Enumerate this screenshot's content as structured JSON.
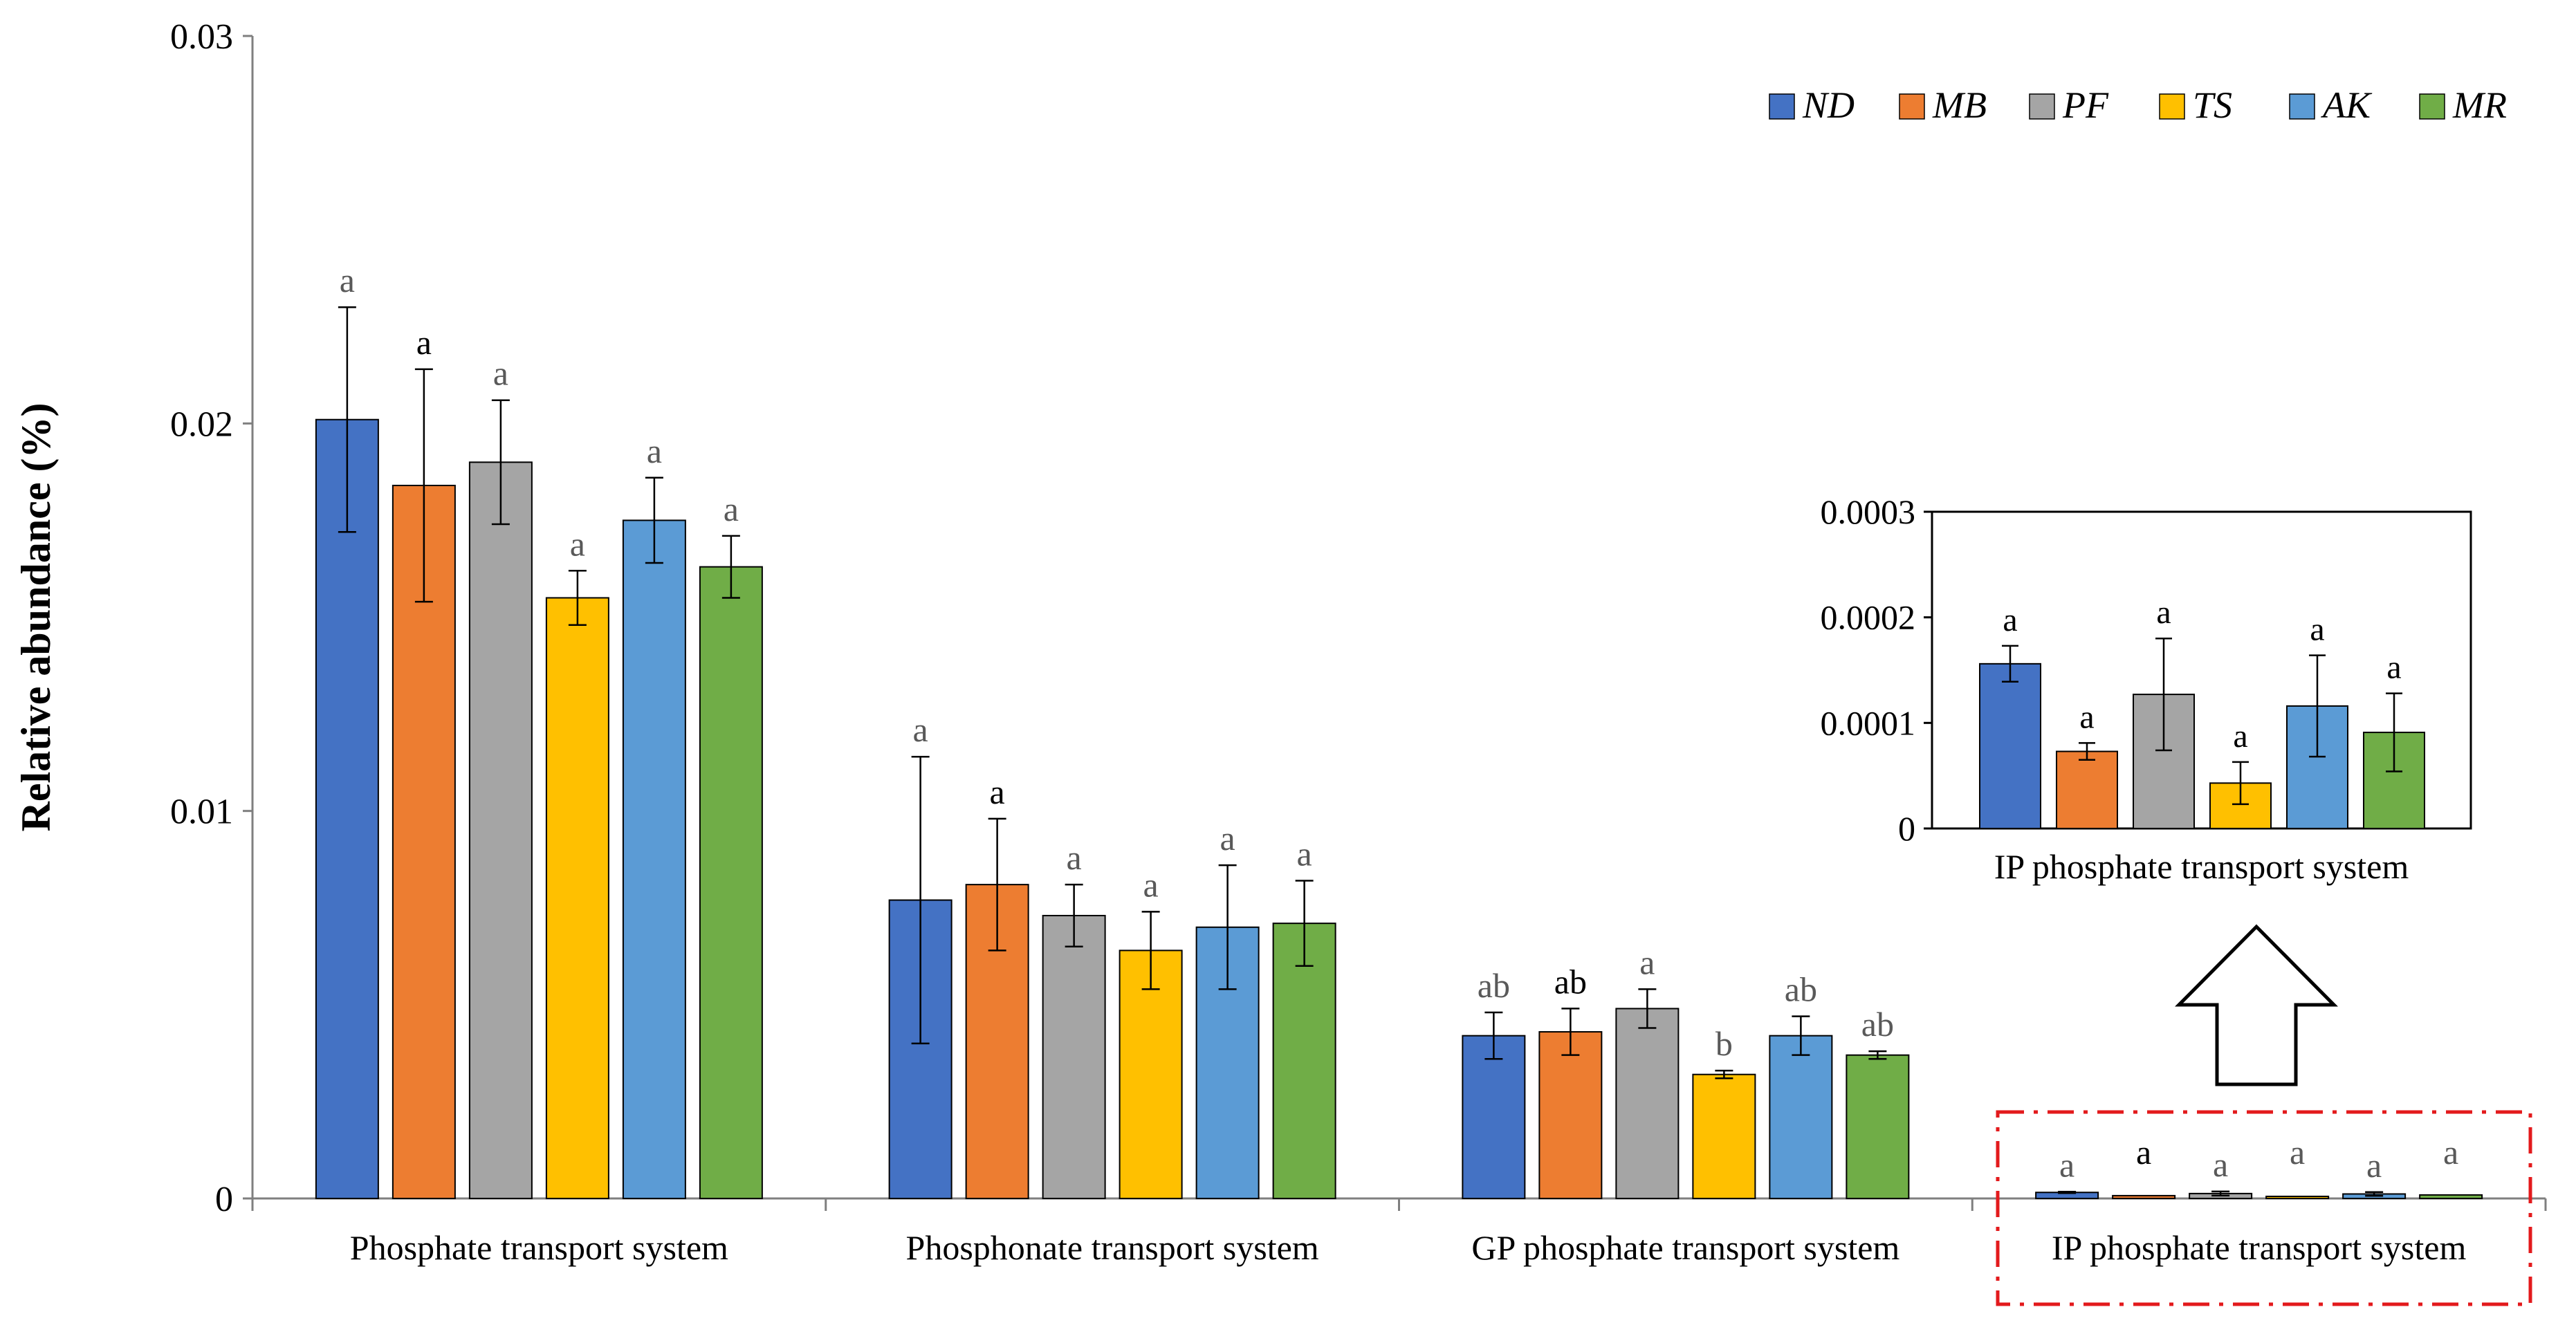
{
  "chart_data": {
    "type": "bar",
    "ylabel": "Relative abundance (%)",
    "ylim": [
      0,
      0.03
    ],
    "yticks": [
      "0",
      "0.01",
      "0.02",
      "0.03"
    ],
    "ytick_values": [
      0,
      0.01,
      0.02,
      0.03
    ],
    "grid": false,
    "legend_position": "top-right",
    "categories": [
      "Phosphate transport system",
      "Phosphonate transport system",
      "GP phosphate transport system",
      "IP phosphate transport system"
    ],
    "series": [
      {
        "name": "ND",
        "color": "#4472C4",
        "values": [
          0.0201,
          0.0077,
          0.0042,
          0.000156
        ],
        "errors": [
          0.0029,
          0.0037,
          0.0006,
          1.7e-05
        ],
        "letters": [
          "a",
          "a",
          "ab",
          "a"
        ]
      },
      {
        "name": "MB",
        "color": "#ED7D31",
        "values": [
          0.0184,
          0.0081,
          0.0043,
          7.3e-05
        ],
        "errors": [
          0.003,
          0.0017,
          0.0006,
          8e-06
        ],
        "letters": [
          "a",
          "a",
          "ab",
          "a"
        ]
      },
      {
        "name": "PF",
        "color": "#A5A5A5",
        "values": [
          0.019,
          0.0073,
          0.0049,
          0.000127
        ],
        "errors": [
          0.0016,
          0.0008,
          0.0005,
          5.3e-05
        ],
        "letters": [
          "a",
          "a",
          "a",
          "a"
        ]
      },
      {
        "name": "TS",
        "color": "#FFC000",
        "values": [
          0.0155,
          0.0064,
          0.0032,
          4.3e-05
        ],
        "errors": [
          0.0007,
          0.001,
          0.0001,
          2e-05
        ],
        "letters": [
          "a",
          "a",
          "b",
          "a"
        ]
      },
      {
        "name": "AK",
        "color": "#5B9BD5",
        "values": [
          0.0175,
          0.007,
          0.0042,
          0.000116
        ],
        "errors": [
          0.0011,
          0.0016,
          0.0005,
          4.8e-05
        ],
        "letters": [
          "a",
          "a",
          "ab",
          "a"
        ]
      },
      {
        "name": "MR",
        "color": "#70AD47",
        "values": [
          0.0163,
          0.0071,
          0.0037,
          9.1e-05
        ],
        "errors": [
          0.0008,
          0.0011,
          0.0001,
          3.7e-05
        ],
        "letters": [
          "a",
          "a",
          "ab",
          "a"
        ]
      }
    ],
    "inset": {
      "category": "IP phosphate transport system",
      "xlabel": "IP phosphate transport system",
      "ylim": [
        0,
        0.0003
      ],
      "yticks": [
        "0",
        "0.0001",
        "0.0002",
        "0.0003"
      ],
      "ytick_values": [
        0,
        0.0001,
        0.0002,
        0.0003
      ]
    }
  },
  "colors": {
    "axis": "#7f7f7f",
    "highlight_box": "#e31a1c"
  }
}
